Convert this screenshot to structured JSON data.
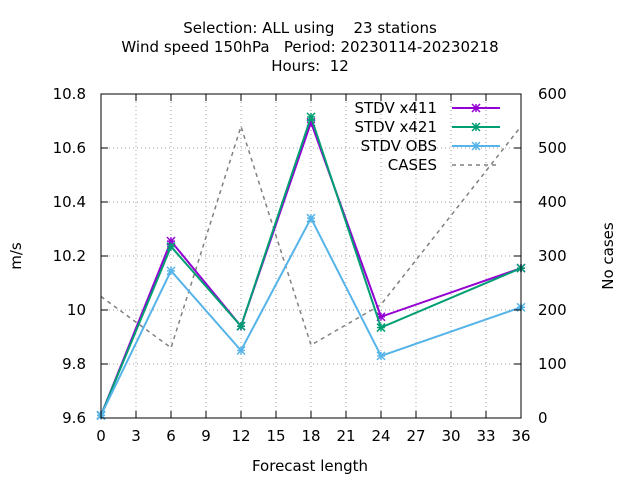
{
  "chart_data": {
    "type": "line",
    "title_lines": [
      "Selection: ALL using    23 stations",
      "Wind speed 150hPa   Period: 20230114-20230218",
      "Hours:  12"
    ],
    "xlabel": "Forecast length",
    "ylabel": "m/s",
    "y2label": "No cases",
    "xlim": [
      0,
      36
    ],
    "ylim": [
      9.6,
      10.8
    ],
    "y2lim": [
      0,
      600
    ],
    "xticks": [
      0,
      3,
      6,
      9,
      12,
      15,
      18,
      21,
      24,
      27,
      30,
      33,
      36
    ],
    "yticks": [
      "9.6",
      "9.8",
      "10",
      "10.2",
      "10.4",
      "10.6",
      "10.8"
    ],
    "y2ticks": [
      "0",
      "100",
      "200",
      "300",
      "400",
      "500",
      "600"
    ],
    "grid": true,
    "legend_position": "top-right",
    "x": [
      0,
      6,
      12,
      18,
      24,
      36
    ],
    "series": [
      {
        "name": "STDV x411",
        "color": "#9400d3",
        "axis": "y",
        "style": "line-points",
        "values": [
          9.61,
          10.255,
          9.94,
          10.695,
          9.975,
          10.155
        ]
      },
      {
        "name": "STDV x421",
        "color": "#009e73",
        "axis": "y",
        "style": "line-points",
        "values": [
          9.61,
          10.235,
          9.94,
          10.715,
          9.935,
          10.155
        ]
      },
      {
        "name": "STDV OBS",
        "color": "#56b4e9",
        "axis": "y",
        "style": "line-points",
        "values": [
          9.61,
          10.145,
          9.85,
          10.34,
          9.83,
          10.01
        ]
      },
      {
        "name": "CASES",
        "color": "#808080",
        "axis": "y2",
        "style": "dashed",
        "values": [
          225,
          130,
          540,
          135,
          210,
          540
        ]
      }
    ]
  }
}
